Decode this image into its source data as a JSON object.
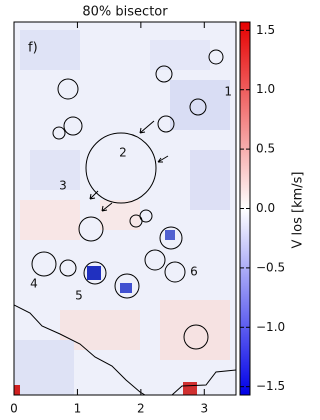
{
  "chart_data": {
    "type": "heatmap",
    "title": "80% bisector",
    "panel_label": "f)",
    "region_labels": [
      "1",
      "2",
      "3",
      "4",
      "5",
      "6"
    ],
    "xlim": [
      0,
      3.5
    ],
    "xticks": [
      0,
      1,
      2,
      3
    ],
    "colorbar": {
      "label": "V los [km/s]",
      "lim": [
        -1.57,
        1.57
      ],
      "ticks": [
        {
          "value": 1.5,
          "label": "1.5"
        },
        {
          "value": 1.0,
          "label": "1.0"
        },
        {
          "value": 0.5,
          "label": "0.5"
        },
        {
          "value": 0,
          "label": "0.0"
        },
        {
          "value": -0.5,
          "label": "−0.5"
        },
        {
          "value": -1.0,
          "label": "−1.0"
        },
        {
          "value": -1.5,
          "label": "−1.5"
        }
      ],
      "colors": [
        "#0000e6",
        "#ffffff",
        "#e60000"
      ]
    }
  }
}
